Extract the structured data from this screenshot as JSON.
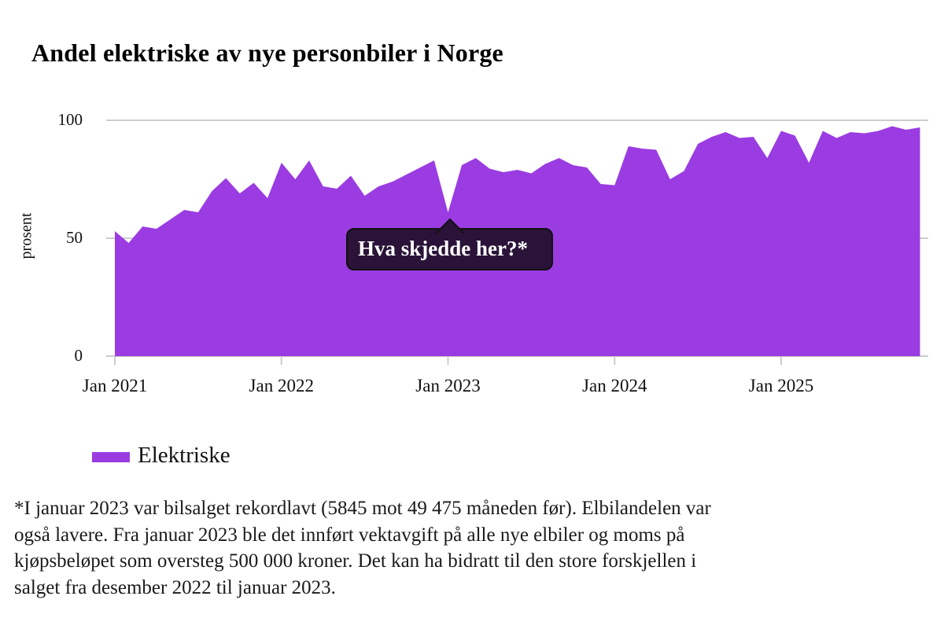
{
  "title": "Andel elektriske av nye personbiler i Norge",
  "colors": {
    "accent": "#9a3ce2",
    "grid": "#cccccc",
    "tooltip_bg": "#2a1238",
    "tooltip_text": "#ffffff"
  },
  "chart_data": {
    "type": "area",
    "title": "Andel elektriske av nye personbiler i Norge",
    "xlabel": "",
    "ylabel": "prosent",
    "ylim": [
      0,
      100
    ],
    "grid": "horizontal lines at 0, 50, 100",
    "legend_position": "bottom-left",
    "x_unit": "month",
    "x_range": [
      "Jan 2021",
      "Nov 2025"
    ],
    "x_ticks": [
      "Jan 2021",
      "Jan 2022",
      "Jan 2023",
      "Jan 2024",
      "Jan 2025"
    ],
    "y_ticks": [
      "0",
      "50",
      "100"
    ],
    "series": [
      {
        "name": "Elektriske",
        "color": "#9a3ce2",
        "values": [
          53,
          48,
          55,
          54,
          58,
          62,
          61,
          70,
          75.5,
          69,
          73.5,
          67,
          82,
          75,
          83,
          72,
          71,
          76.5,
          68,
          72,
          74,
          77,
          80,
          83,
          61,
          81,
          84,
          79.5,
          78,
          79,
          77.5,
          81.5,
          84,
          81,
          80,
          73,
          72.5,
          89,
          88,
          87.5,
          75,
          78.5,
          90,
          93,
          95,
          92.5,
          93,
          84,
          95.5,
          93.5,
          82,
          95.5,
          92.5,
          95,
          94.5,
          95.5,
          97.5,
          96,
          97
        ]
      }
    ],
    "annotation": {
      "text": "Hva skjedde her?*",
      "points_at_x": "Jan 2023",
      "points_at_value": 61
    }
  },
  "legend": {
    "label": "Elektriske"
  },
  "tooltip": {
    "text": "Hva skjedde her?*"
  },
  "footnote_lines": [
    "*I januar 2023 var bilsalget rekordlavt (5845 mot 49 475 måneden før). Elbilandelen var",
    "også lavere. Fra januar 2023 ble det innført vektavgift på alle nye elbiler og moms på",
    "kjøpsbeløpet som oversteg 500 000 kroner. Det kan ha bidratt til den store forskjellen i",
    "salget fra desember 2022 til januar 2023."
  ]
}
